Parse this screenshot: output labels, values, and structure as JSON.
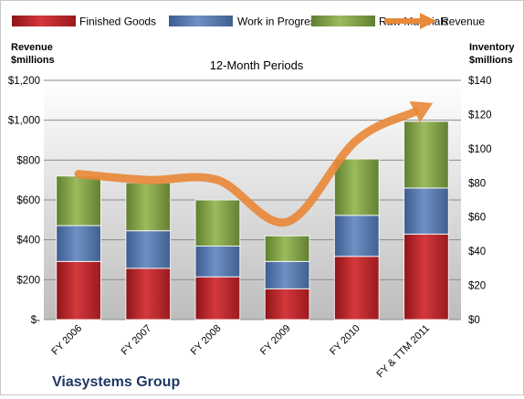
{
  "chart_data": {
    "type": "bar",
    "stacked": true,
    "subtitle": "12-Month Periods",
    "company": "Viasystems Group",
    "categories": [
      "FY 2006",
      "FY 2007",
      "FY 2008",
      "FY 2009",
      "FY 2010",
      "FY & TTM 2011"
    ],
    "series": [
      {
        "name": "Finished Goods",
        "axis": "right",
        "color": "#c0282d",
        "values": [
          34,
          30,
          25,
          18,
          37,
          50
        ]
      },
      {
        "name": "Work in Progress",
        "axis": "right",
        "color": "#4f74ad",
        "values": [
          21,
          22,
          18,
          16,
          24,
          27
        ]
      },
      {
        "name": "Raw Materials",
        "axis": "right",
        "color": "#7f9f45",
        "values": [
          29,
          28,
          27,
          15,
          33,
          39
        ]
      },
      {
        "name": "Revenue",
        "axis": "left",
        "type": "line",
        "color": "#e8893a",
        "values": [
          730,
          700,
          700,
          490,
          900,
          1070
        ]
      }
    ],
    "y_left": {
      "label_line1": "Revenue",
      "label_line2": "$millions",
      "lim": [
        0,
        1200
      ],
      "ticks": [
        0,
        200,
        400,
        600,
        800,
        1000,
        1200
      ],
      "tick_labels": [
        "$-",
        "$200",
        "$400",
        "$600",
        "$800",
        "$1,000",
        "$1,200"
      ]
    },
    "y_right": {
      "label_line1": "Inventory",
      "label_line2": "$millions",
      "lim": [
        0,
        140
      ],
      "ticks": [
        0,
        20,
        40,
        60,
        80,
        100,
        120,
        140
      ],
      "tick_labels": [
        "$0",
        "$20",
        "$40",
        "$60",
        "$80",
        "$100",
        "$120",
        "$140"
      ]
    },
    "legend_position": "top",
    "plot_background": "gradient-gray"
  }
}
